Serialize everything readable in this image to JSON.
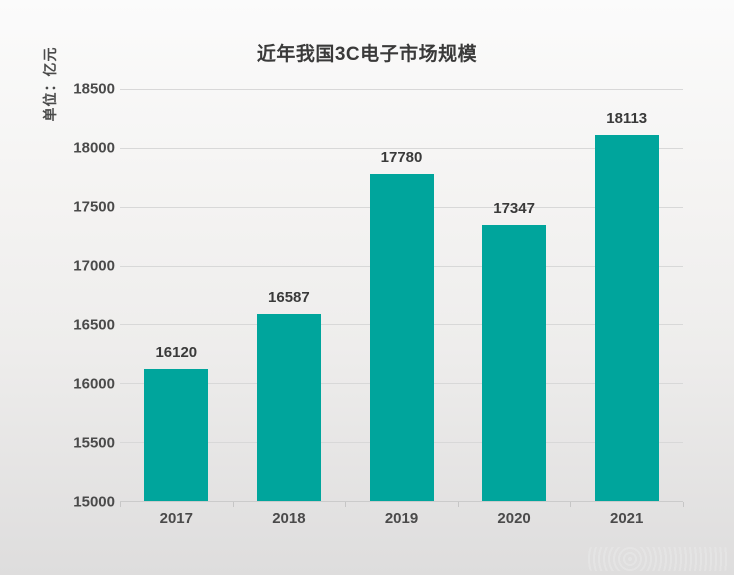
{
  "page": {
    "background_top": "#fbfbfb",
    "background_bottom": "#dedddd"
  },
  "chart_data": {
    "type": "bar",
    "title": "近年我国3C电子市场规模",
    "unit_label": "单位：亿元",
    "categories": [
      "2017",
      "2018",
      "2019",
      "2020",
      "2021"
    ],
    "values": [
      16120,
      16587,
      17780,
      17347,
      18113
    ],
    "data_labels": [
      "16120",
      "16587",
      "17780",
      "17347",
      "18113"
    ],
    "xlabel": "",
    "ylabel": "单位：亿元",
    "ylim": [
      15000,
      18500
    ],
    "yticks": [
      15000,
      15500,
      16000,
      16500,
      17000,
      17500,
      18000,
      18500
    ],
    "grid": "horizontal",
    "legend": "none",
    "bar_color": "#00A59C",
    "gridline_color": "#d8d8d8",
    "text_color": "#3a3a3a",
    "tick_text_color": "#4a4a4a"
  }
}
